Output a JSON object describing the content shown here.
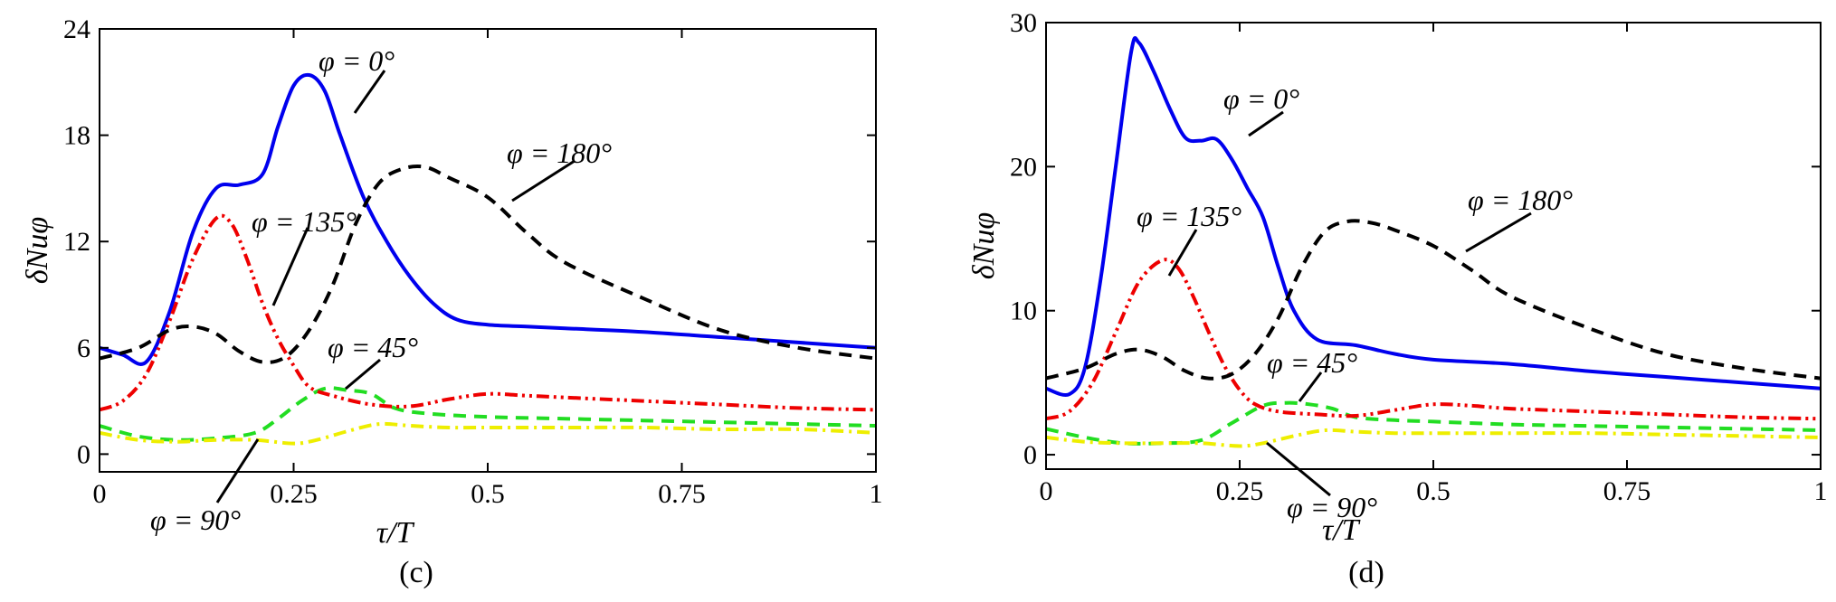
{
  "chart_data": [
    {
      "type": "line",
      "panel_label": "(c)",
      "xlabel": "τ/T",
      "ylabel": "δNuφ",
      "xlim": [
        0,
        1
      ],
      "ylim": [
        -1,
        24
      ],
      "xticks": [
        "0",
        "0.25",
        "0.5",
        "0.75",
        "1"
      ],
      "xtick_values": [
        0,
        0.25,
        0.5,
        0.75,
        1
      ],
      "yticks": [
        "0",
        "6",
        "12",
        "18",
        "24"
      ],
      "ytick_values": [
        0,
        6,
        12,
        18,
        24
      ],
      "series": [
        {
          "name": "φ = 0°",
          "color": "#0000ee",
          "style": "solid",
          "x": [
            0,
            0.03,
            0.06,
            0.09,
            0.12,
            0.15,
            0.18,
            0.21,
            0.23,
            0.25,
            0.27,
            0.29,
            0.31,
            0.34,
            0.37,
            0.4,
            0.43,
            0.46,
            0.5,
            0.55,
            0.6,
            0.7,
            0.8,
            0.9,
            1.0
          ],
          "y": [
            6.0,
            5.6,
            5.2,
            8.0,
            12.5,
            15.0,
            15.2,
            15.8,
            18.5,
            20.8,
            21.4,
            20.5,
            18.0,
            14.5,
            12.0,
            10.0,
            8.5,
            7.6,
            7.3,
            7.2,
            7.1,
            6.9,
            6.6,
            6.3,
            6.0
          ]
        },
        {
          "name": "φ = 45°",
          "color": "#22dd22",
          "style": "dashed",
          "x": [
            0,
            0.05,
            0.1,
            0.15,
            0.2,
            0.23,
            0.26,
            0.29,
            0.32,
            0.35,
            0.38,
            0.42,
            0.5,
            0.6,
            0.7,
            0.8,
            0.9,
            1.0
          ],
          "y": [
            1.6,
            1.0,
            0.8,
            0.9,
            1.2,
            2.0,
            3.0,
            3.7,
            3.6,
            3.4,
            2.6,
            2.3,
            2.1,
            2.0,
            1.9,
            1.8,
            1.7,
            1.6
          ]
        },
        {
          "name": "φ = 90°",
          "color": "#eeee00",
          "style": "dashdot",
          "x": [
            0,
            0.05,
            0.1,
            0.15,
            0.2,
            0.25,
            0.28,
            0.32,
            0.36,
            0.4,
            0.45,
            0.5,
            0.6,
            0.7,
            0.8,
            0.9,
            1.0
          ],
          "y": [
            1.2,
            0.8,
            0.7,
            0.8,
            0.8,
            0.6,
            0.8,
            1.3,
            1.7,
            1.6,
            1.5,
            1.5,
            1.5,
            1.5,
            1.4,
            1.4,
            1.2
          ]
        },
        {
          "name": "φ = 135°",
          "color": "#ee0000",
          "style": "dashdotdot",
          "x": [
            0,
            0.03,
            0.06,
            0.09,
            0.12,
            0.15,
            0.17,
            0.19,
            0.21,
            0.23,
            0.25,
            0.27,
            0.3,
            0.35,
            0.4,
            0.45,
            0.5,
            0.55,
            0.6,
            0.7,
            0.8,
            0.9,
            1.0
          ],
          "y": [
            2.5,
            3.0,
            4.5,
            7.5,
            11.0,
            13.3,
            13.0,
            11.0,
            8.5,
            6.5,
            5.0,
            3.8,
            3.3,
            2.8,
            2.7,
            3.1,
            3.4,
            3.3,
            3.2,
            3.0,
            2.8,
            2.6,
            2.5
          ]
        },
        {
          "name": "φ = 180°",
          "color": "#000000",
          "style": "dashed",
          "x": [
            0,
            0.05,
            0.09,
            0.12,
            0.15,
            0.18,
            0.21,
            0.24,
            0.27,
            0.3,
            0.33,
            0.36,
            0.39,
            0.42,
            0.45,
            0.5,
            0.55,
            0.6,
            0.7,
            0.8,
            0.9,
            1.0
          ],
          "y": [
            5.4,
            6.0,
            7.0,
            7.2,
            6.8,
            5.8,
            5.2,
            5.5,
            7.0,
            9.5,
            13.0,
            15.3,
            16.1,
            16.2,
            15.6,
            14.5,
            12.5,
            10.8,
            8.8,
            7.0,
            6.0,
            5.4
          ]
        }
      ],
      "annotations": [
        {
          "text": "φ = 0°",
          "target_series": "φ = 0°"
        },
        {
          "text": "φ = 180°",
          "target_series": "φ = 180°"
        },
        {
          "text": "φ = 135°",
          "target_series": "φ = 135°"
        },
        {
          "text": "φ = 45°",
          "target_series": "φ = 45°"
        },
        {
          "text": "φ = 90°",
          "target_series": "φ = 90°"
        }
      ]
    },
    {
      "type": "line",
      "panel_label": "(d)",
      "xlabel": "τ/T",
      "ylabel": "δNuφ",
      "xlim": [
        0,
        1
      ],
      "ylim": [
        -1,
        30
      ],
      "xticks": [
        "0",
        "0.25",
        "0.5",
        "0.75",
        "1"
      ],
      "xtick_values": [
        0,
        0.25,
        0.5,
        0.75,
        1
      ],
      "yticks": [
        "0",
        "10",
        "20",
        "30"
      ],
      "ytick_values": [
        0,
        10,
        20,
        30
      ],
      "series": [
        {
          "name": "φ = 0°",
          "color": "#0000ee",
          "style": "solid",
          "x": [
            0,
            0.03,
            0.05,
            0.07,
            0.09,
            0.11,
            0.12,
            0.14,
            0.16,
            0.18,
            0.2,
            0.22,
            0.24,
            0.26,
            0.28,
            0.3,
            0.32,
            0.35,
            0.4,
            0.45,
            0.5,
            0.6,
            0.7,
            0.8,
            0.9,
            1.0
          ],
          "y": [
            4.6,
            4.2,
            6.0,
            12.0,
            20.0,
            28.0,
            28.6,
            26.5,
            24.0,
            22.0,
            21.8,
            21.9,
            20.5,
            18.5,
            16.5,
            13.0,
            10.0,
            8.0,
            7.6,
            7.0,
            6.6,
            6.3,
            5.8,
            5.4,
            5.0,
            4.6
          ]
        },
        {
          "name": "φ = 45°",
          "color": "#22dd22",
          "style": "dashed",
          "x": [
            0,
            0.05,
            0.1,
            0.15,
            0.2,
            0.24,
            0.28,
            0.31,
            0.34,
            0.37,
            0.4,
            0.45,
            0.5,
            0.6,
            0.7,
            0.8,
            0.9,
            1.0
          ],
          "y": [
            1.8,
            1.2,
            0.8,
            0.8,
            1.0,
            2.2,
            3.4,
            3.6,
            3.5,
            3.2,
            2.6,
            2.4,
            2.3,
            2.1,
            2.0,
            1.9,
            1.8,
            1.7
          ]
        },
        {
          "name": "φ = 90°",
          "color": "#eeee00",
          "style": "dashdot",
          "x": [
            0,
            0.05,
            0.1,
            0.15,
            0.2,
            0.25,
            0.28,
            0.32,
            0.36,
            0.4,
            0.45,
            0.5,
            0.6,
            0.7,
            0.8,
            0.9,
            1.0
          ],
          "y": [
            1.2,
            0.9,
            0.8,
            0.8,
            0.8,
            0.6,
            0.8,
            1.3,
            1.7,
            1.6,
            1.5,
            1.5,
            1.5,
            1.5,
            1.4,
            1.3,
            1.2
          ]
        },
        {
          "name": "φ = 135°",
          "color": "#ee0000",
          "style": "dashdotdot",
          "x": [
            0,
            0.03,
            0.06,
            0.09,
            0.12,
            0.15,
            0.17,
            0.19,
            0.21,
            0.23,
            0.25,
            0.27,
            0.3,
            0.35,
            0.4,
            0.45,
            0.5,
            0.55,
            0.6,
            0.7,
            0.8,
            0.9,
            1.0
          ],
          "y": [
            2.5,
            3.0,
            5.0,
            8.5,
            12.0,
            13.5,
            13.0,
            11.0,
            8.5,
            6.2,
            4.5,
            3.5,
            3.0,
            2.8,
            2.7,
            3.1,
            3.5,
            3.4,
            3.2,
            3.0,
            2.8,
            2.6,
            2.5
          ]
        },
        {
          "name": "φ = 180°",
          "color": "#000000",
          "style": "dashed",
          "x": [
            0,
            0.05,
            0.09,
            0.12,
            0.15,
            0.18,
            0.21,
            0.24,
            0.27,
            0.3,
            0.33,
            0.36,
            0.39,
            0.42,
            0.45,
            0.5,
            0.55,
            0.6,
            0.7,
            0.8,
            0.9,
            1.0
          ],
          "y": [
            5.3,
            6.0,
            7.0,
            7.3,
            6.8,
            5.8,
            5.3,
            5.6,
            7.0,
            9.5,
            13.0,
            15.5,
            16.2,
            16.1,
            15.6,
            14.5,
            12.8,
            11.0,
            8.8,
            7.0,
            6.0,
            5.3
          ]
        }
      ],
      "annotations": [
        {
          "text": "φ = 0°",
          "target_series": "φ = 0°"
        },
        {
          "text": "φ = 180°",
          "target_series": "φ = 180°"
        },
        {
          "text": "φ = 135°",
          "target_series": "φ = 135°"
        },
        {
          "text": "φ = 45°",
          "target_series": "φ = 45°"
        },
        {
          "text": "φ = 90°",
          "target_series": "φ = 90°"
        }
      ]
    }
  ]
}
